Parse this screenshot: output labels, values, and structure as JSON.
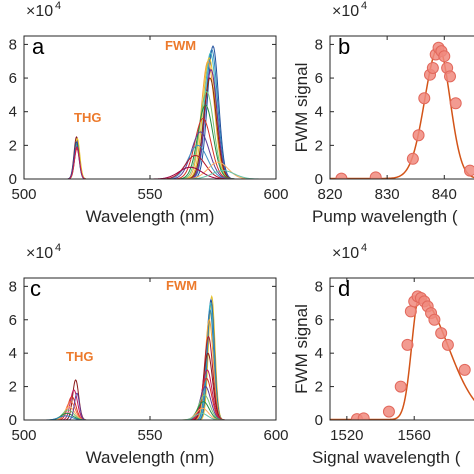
{
  "chart_data": [
    {
      "panel": "a",
      "type": "line",
      "xlabel": "Wavelength (nm)",
      "ylabel": "",
      "xlim": [
        500,
        600
      ],
      "ylim": [
        0,
        85000
      ],
      "xticks": [
        "500",
        "550",
        "600"
      ],
      "yticks": [
        "0",
        "2",
        "4",
        "6",
        "8"
      ],
      "y_multiplier_base": "×10",
      "y_multiplier_exp": "4",
      "annotations": [
        "THG",
        "FWM"
      ],
      "grid": false,
      "thg_center": 521,
      "thg_width": 1.0,
      "thg_peaks": [
        25000,
        23000,
        21000,
        20000,
        18000,
        24000,
        22000,
        19000
      ],
      "fwm_series": [
        {
          "center": 575.0,
          "width": 2.2,
          "peak": 79000,
          "color": "#1f4e9c"
        },
        {
          "center": 574.5,
          "width": 2.3,
          "peak": 77000,
          "color": "#2c7fb8"
        },
        {
          "center": 574.0,
          "width": 2.4,
          "peak": 75000,
          "color": "#41b6c4"
        },
        {
          "center": 573.5,
          "width": 2.5,
          "peak": 72000,
          "color": "#e6c229"
        },
        {
          "center": 573.0,
          "width": 2.6,
          "peak": 70000,
          "color": "#f2a53a"
        },
        {
          "center": 574.2,
          "width": 2.4,
          "peak": 65000,
          "color": "#7a1f8f"
        },
        {
          "center": 573.8,
          "width": 2.5,
          "peak": 60000,
          "color": "#8c2d04"
        },
        {
          "center": 572.5,
          "width": 2.8,
          "peak": 52000,
          "color": "#74c476"
        },
        {
          "center": 572.0,
          "width": 3.0,
          "peak": 44000,
          "color": "#238b45"
        },
        {
          "center": 571.0,
          "width": 3.2,
          "peak": 36000,
          "color": "#d73027"
        },
        {
          "center": 570.0,
          "width": 3.5,
          "peak": 28000,
          "color": "#5e3c99"
        },
        {
          "center": 569.0,
          "width": 3.8,
          "peak": 20000,
          "color": "#4393c3"
        },
        {
          "center": 568.0,
          "width": 4.0,
          "peak": 14000,
          "color": "#b2182b"
        },
        {
          "center": 577.0,
          "width": 4.0,
          "peak": 10000,
          "color": "#fdae61"
        },
        {
          "center": 566.0,
          "width": 4.5,
          "peak": 7000,
          "color": "#9e0142"
        },
        {
          "center": 579.0,
          "width": 4.5,
          "peak": 5000,
          "color": "#66c2a5"
        }
      ]
    },
    {
      "panel": "b",
      "type": "scatter",
      "xlabel": "Pump wavelength (",
      "ylabel": "FWM signal",
      "xlim": [
        820,
        848
      ],
      "ylim": [
        0,
        85000
      ],
      "xticks": [
        "820",
        "830",
        "840"
      ],
      "yticks": [
        "0",
        "2",
        "4",
        "6",
        "8"
      ],
      "y_multiplier_base": "×10",
      "y_multiplier_exp": "4",
      "grid": false,
      "points_x": [
        822,
        828,
        834.5,
        835.5,
        836.5,
        837.5,
        838,
        838.5,
        839,
        839.5,
        840,
        840.5,
        841,
        842,
        844.5
      ],
      "points_y": [
        200,
        1000,
        12000,
        26000,
        48000,
        62000,
        66000,
        74000,
        78000,
        76000,
        73000,
        66000,
        61000,
        45000,
        5000
      ],
      "fit_center": 839,
      "fit_peak": 78000
    },
    {
      "panel": "c",
      "type": "line",
      "xlabel": "Wavelength (nm)",
      "ylabel": "",
      "xlim": [
        500,
        600
      ],
      "ylim": [
        0,
        85000
      ],
      "xticks": [
        "500",
        "550",
        "600"
      ],
      "yticks": [
        "0",
        "2",
        "4",
        "6",
        "8"
      ],
      "y_multiplier_base": "×10",
      "y_multiplier_exp": "4",
      "annotations": [
        "THG",
        "FWM"
      ],
      "grid": false,
      "thg_series": [
        {
          "center": 520.5,
          "width": 1.2,
          "peak": 24000,
          "color": "#8b1a1a"
        },
        {
          "center": 519.8,
          "width": 1.4,
          "peak": 18000,
          "color": "#c2185b"
        },
        {
          "center": 519.0,
          "width": 1.6,
          "peak": 14000,
          "color": "#d73027"
        },
        {
          "center": 518.5,
          "width": 1.8,
          "peak": 11000,
          "color": "#f46d43"
        },
        {
          "center": 518.0,
          "width": 2.0,
          "peak": 8000,
          "color": "#fdae61"
        },
        {
          "center": 517.5,
          "width": 2.2,
          "peak": 6000,
          "color": "#74c476"
        },
        {
          "center": 517.0,
          "width": 2.4,
          "peak": 4000,
          "color": "#238b45"
        },
        {
          "center": 521.0,
          "width": 1.0,
          "peak": 16000,
          "color": "#5e3c99"
        },
        {
          "center": 516.5,
          "width": 2.6,
          "peak": 2500,
          "color": "#2c7fb8"
        }
      ],
      "fwm_series": [
        {
          "center": 574.5,
          "width": 1.3,
          "peak": 74000,
          "color": "#e6c229"
        },
        {
          "center": 574.2,
          "width": 1.35,
          "peak": 72000,
          "color": "#1f4e9c"
        },
        {
          "center": 574.0,
          "width": 1.4,
          "peak": 70000,
          "color": "#41b6c4"
        },
        {
          "center": 573.8,
          "width": 1.5,
          "peak": 66000,
          "color": "#2c7fb8"
        },
        {
          "center": 573.5,
          "width": 1.6,
          "peak": 60000,
          "color": "#f2a53a"
        },
        {
          "center": 573.2,
          "width": 1.7,
          "peak": 50000,
          "color": "#b2182b"
        },
        {
          "center": 573.0,
          "width": 1.8,
          "peak": 40000,
          "color": "#8b1a1a"
        },
        {
          "center": 572.7,
          "width": 1.9,
          "peak": 30000,
          "color": "#c2185b"
        },
        {
          "center": 572.4,
          "width": 2.0,
          "peak": 25000,
          "color": "#d73027"
        },
        {
          "center": 572.0,
          "width": 2.1,
          "peak": 20000,
          "color": "#5e3c99"
        },
        {
          "center": 571.6,
          "width": 2.2,
          "peak": 15000,
          "color": "#74c476"
        },
        {
          "center": 571.2,
          "width": 2.3,
          "peak": 11000,
          "color": "#238b45"
        },
        {
          "center": 570.8,
          "width": 2.4,
          "peak": 7000,
          "color": "#fdae61"
        },
        {
          "center": 570.4,
          "width": 2.5,
          "peak": 4000,
          "color": "#66c2a5"
        }
      ]
    },
    {
      "panel": "d",
      "type": "scatter",
      "xlabel": "Signal wavelength (",
      "ylabel": "FWM signal",
      "xlim": [
        1510,
        1605
      ],
      "ylim": [
        0,
        85000
      ],
      "xticks": [
        "1520",
        "1560"
      ],
      "yticks": [
        "0",
        "2",
        "4",
        "6",
        "8"
      ],
      "y_multiplier_base": "×10",
      "y_multiplier_exp": "4",
      "grid": false,
      "points_x": [
        1526,
        1530,
        1545,
        1552,
        1556,
        1558,
        1560,
        1562,
        1564,
        1566,
        1568,
        1570,
        1572,
        1576,
        1580,
        1590,
        1600
      ],
      "points_y": [
        500,
        1000,
        5000,
        20000,
        45000,
        65000,
        71000,
        74000,
        73000,
        71000,
        68000,
        64000,
        60000,
        52000,
        45000,
        30000,
        12000
      ],
      "fit_center": 1563,
      "fit_peak": 73000
    }
  ]
}
